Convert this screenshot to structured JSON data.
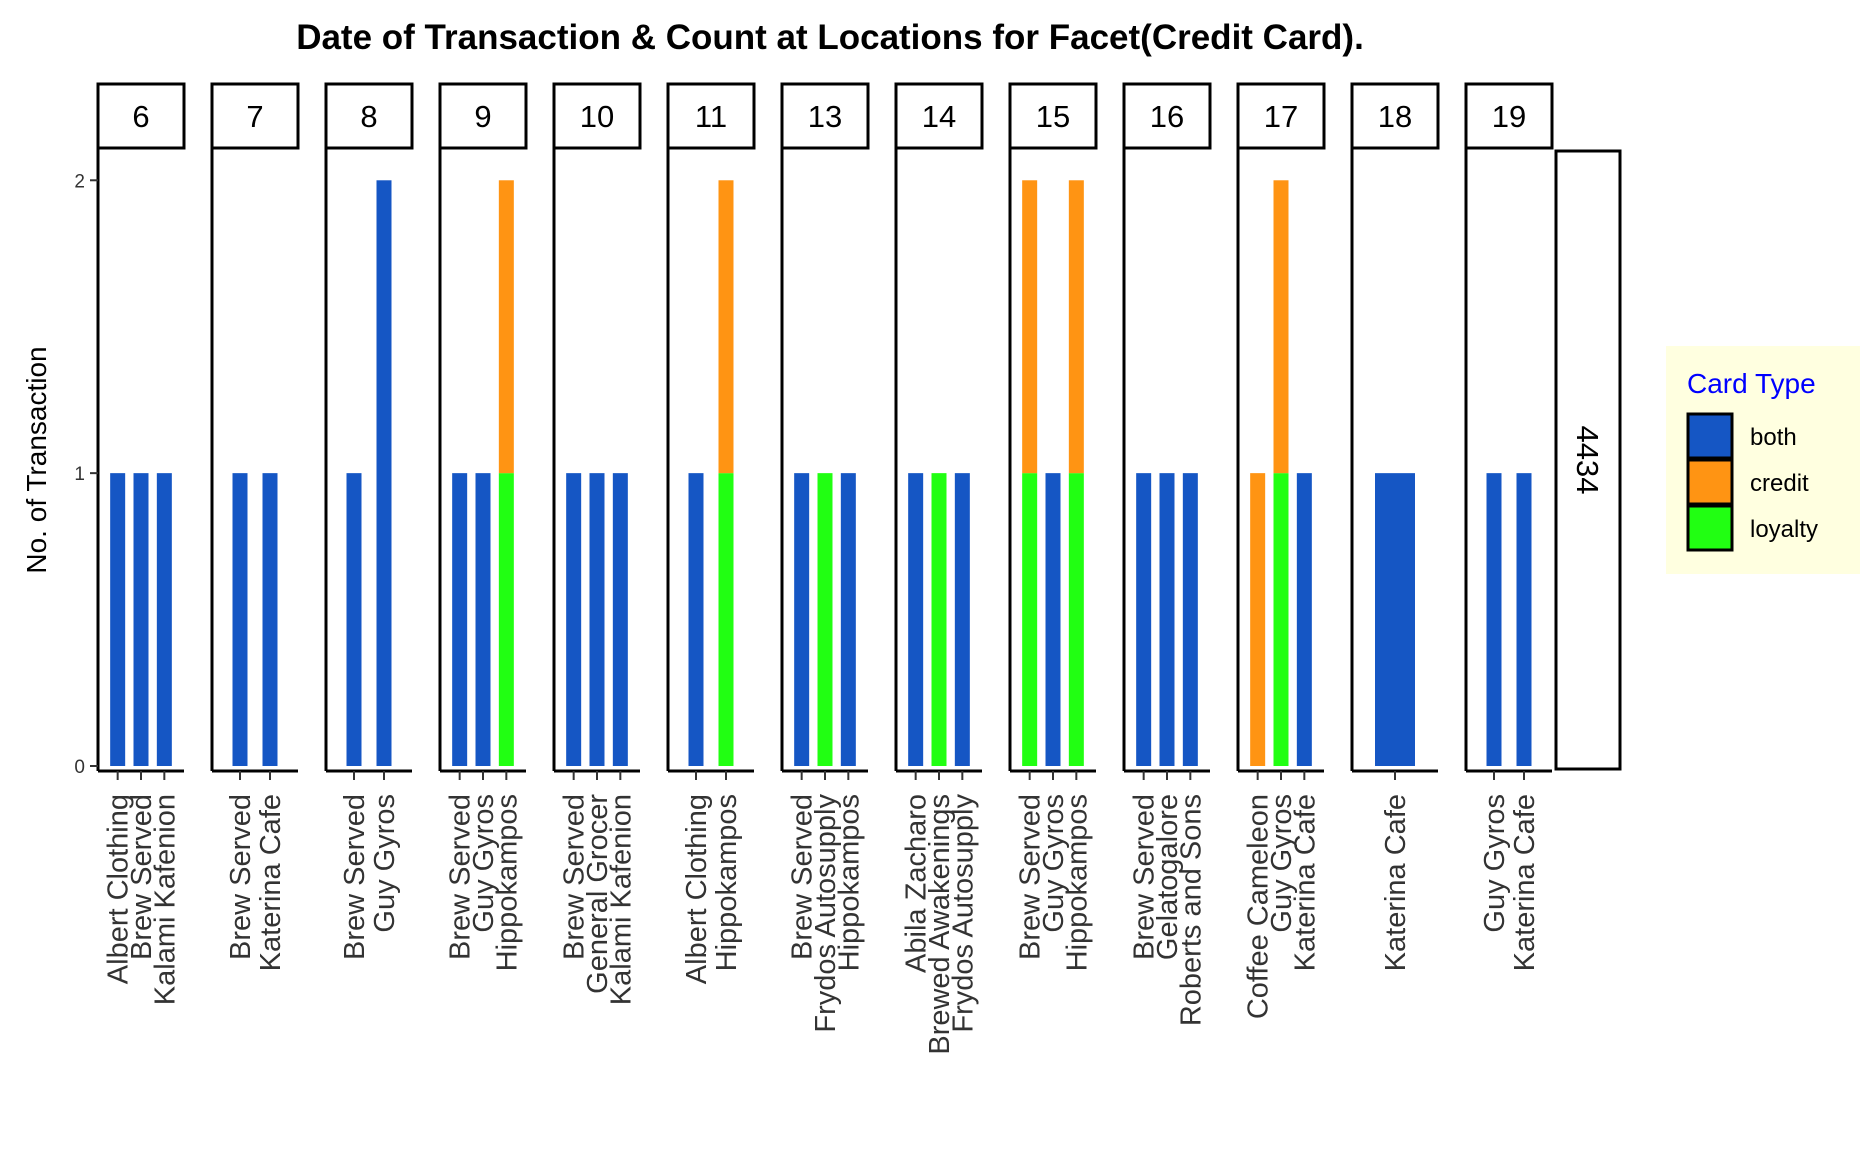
{
  "chart_data": {
    "type": "bar",
    "title": "Date of Transaction & Count at Locations for Facet(Credit Card).",
    "xlabel": "",
    "ylabel": "No. of Transaction",
    "ylim": [
      0,
      2.1
    ],
    "yticks": [
      "0",
      "1",
      "2"
    ],
    "row_facet": "4434",
    "grid": false,
    "legend": {
      "title": "Card Type",
      "title_color": "#0000FF",
      "background": "#FFFFE0",
      "placement": "right",
      "items": [
        {
          "key": "both",
          "label": "both",
          "color": "#1556C4"
        },
        {
          "key": "credit",
          "label": "credit",
          "color": "#FF9413"
        },
        {
          "key": "loyalty",
          "label": "loyalty",
          "color": "#21FF12"
        }
      ]
    },
    "facets": [
      {
        "label": "6",
        "bars": [
          {
            "location": "Albert Clothing",
            "segments": [
              {
                "type": "both",
                "value": 1
              }
            ]
          },
          {
            "location": "Brew Served",
            "segments": [
              {
                "type": "both",
                "value": 1
              }
            ]
          },
          {
            "location": "Kalami Kafenion",
            "segments": [
              {
                "type": "both",
                "value": 1
              }
            ]
          }
        ]
      },
      {
        "label": "7",
        "bars": [
          {
            "location": "Brew Served",
            "segments": [
              {
                "type": "both",
                "value": 1
              }
            ]
          },
          {
            "location": "Katerina Cafe",
            "segments": [
              {
                "type": "both",
                "value": 1
              }
            ]
          }
        ]
      },
      {
        "label": "8",
        "bars": [
          {
            "location": "Brew Served",
            "segments": [
              {
                "type": "both",
                "value": 1
              }
            ]
          },
          {
            "location": "Guy Gyros",
            "segments": [
              {
                "type": "both",
                "value": 2
              }
            ]
          }
        ]
      },
      {
        "label": "9",
        "bars": [
          {
            "location": "Brew Served",
            "segments": [
              {
                "type": "both",
                "value": 1
              }
            ]
          },
          {
            "location": "Guy Gyros",
            "segments": [
              {
                "type": "both",
                "value": 1
              }
            ]
          },
          {
            "location": "Hippokampos",
            "segments": [
              {
                "type": "loyalty",
                "value": 1
              },
              {
                "type": "credit",
                "value": 1
              }
            ]
          }
        ]
      },
      {
        "label": "10",
        "bars": [
          {
            "location": "Brew Served",
            "segments": [
              {
                "type": "both",
                "value": 1
              }
            ]
          },
          {
            "location": "General Grocer",
            "segments": [
              {
                "type": "both",
                "value": 1
              }
            ]
          },
          {
            "location": "Kalami Kafenion",
            "segments": [
              {
                "type": "both",
                "value": 1
              }
            ]
          }
        ]
      },
      {
        "label": "11",
        "bars": [
          {
            "location": "Albert Clothing",
            "segments": [
              {
                "type": "both",
                "value": 1
              }
            ]
          },
          {
            "location": "Hippokampos",
            "segments": [
              {
                "type": "loyalty",
                "value": 1
              },
              {
                "type": "credit",
                "value": 1
              }
            ]
          }
        ]
      },
      {
        "label": "13",
        "bars": [
          {
            "location": "Brew Served",
            "segments": [
              {
                "type": "both",
                "value": 1
              }
            ]
          },
          {
            "location": "Frydos Autosupply",
            "segments": [
              {
                "type": "loyalty",
                "value": 1
              }
            ]
          },
          {
            "location": "Hippokampos",
            "segments": [
              {
                "type": "both",
                "value": 1
              }
            ]
          }
        ]
      },
      {
        "label": "14",
        "bars": [
          {
            "location": "Abila Zacharo",
            "segments": [
              {
                "type": "both",
                "value": 1
              }
            ]
          },
          {
            "location": "Brewed Awakenings",
            "segments": [
              {
                "type": "loyalty",
                "value": 1
              }
            ]
          },
          {
            "location": "Frydos Autosupply",
            "segments": [
              {
                "type": "both",
                "value": 1
              }
            ]
          }
        ]
      },
      {
        "label": "15",
        "bars": [
          {
            "location": "Brew Served",
            "segments": [
              {
                "type": "loyalty",
                "value": 1
              },
              {
                "type": "credit",
                "value": 1
              }
            ]
          },
          {
            "location": "Guy Gyros",
            "segments": [
              {
                "type": "both",
                "value": 1
              }
            ]
          },
          {
            "location": "Hippokampos",
            "segments": [
              {
                "type": "loyalty",
                "value": 1
              },
              {
                "type": "credit",
                "value": 1
              }
            ]
          }
        ]
      },
      {
        "label": "16",
        "bars": [
          {
            "location": "Brew Served",
            "segments": [
              {
                "type": "both",
                "value": 1
              }
            ]
          },
          {
            "location": "Gelatogalore",
            "segments": [
              {
                "type": "both",
                "value": 1
              }
            ]
          },
          {
            "location": "Roberts and Sons",
            "segments": [
              {
                "type": "both",
                "value": 1
              }
            ]
          }
        ]
      },
      {
        "label": "17",
        "bars": [
          {
            "location": "Coffee Cameleon",
            "segments": [
              {
                "type": "credit",
                "value": 1
              }
            ]
          },
          {
            "location": "Guy Gyros",
            "segments": [
              {
                "type": "loyalty",
                "value": 1
              },
              {
                "type": "credit",
                "value": 1
              }
            ]
          },
          {
            "location": "Katerina Cafe",
            "segments": [
              {
                "type": "both",
                "value": 1
              }
            ]
          }
        ]
      },
      {
        "label": "18",
        "bars": [
          {
            "location": "Katerina Cafe",
            "segments": [
              {
                "type": "both",
                "value": 1
              }
            ]
          }
        ]
      },
      {
        "label": "19",
        "bars": [
          {
            "location": "Guy Gyros",
            "segments": [
              {
                "type": "both",
                "value": 1
              }
            ]
          },
          {
            "location": "Katerina Cafe",
            "segments": [
              {
                "type": "both",
                "value": 1
              }
            ]
          }
        ]
      }
    ]
  }
}
